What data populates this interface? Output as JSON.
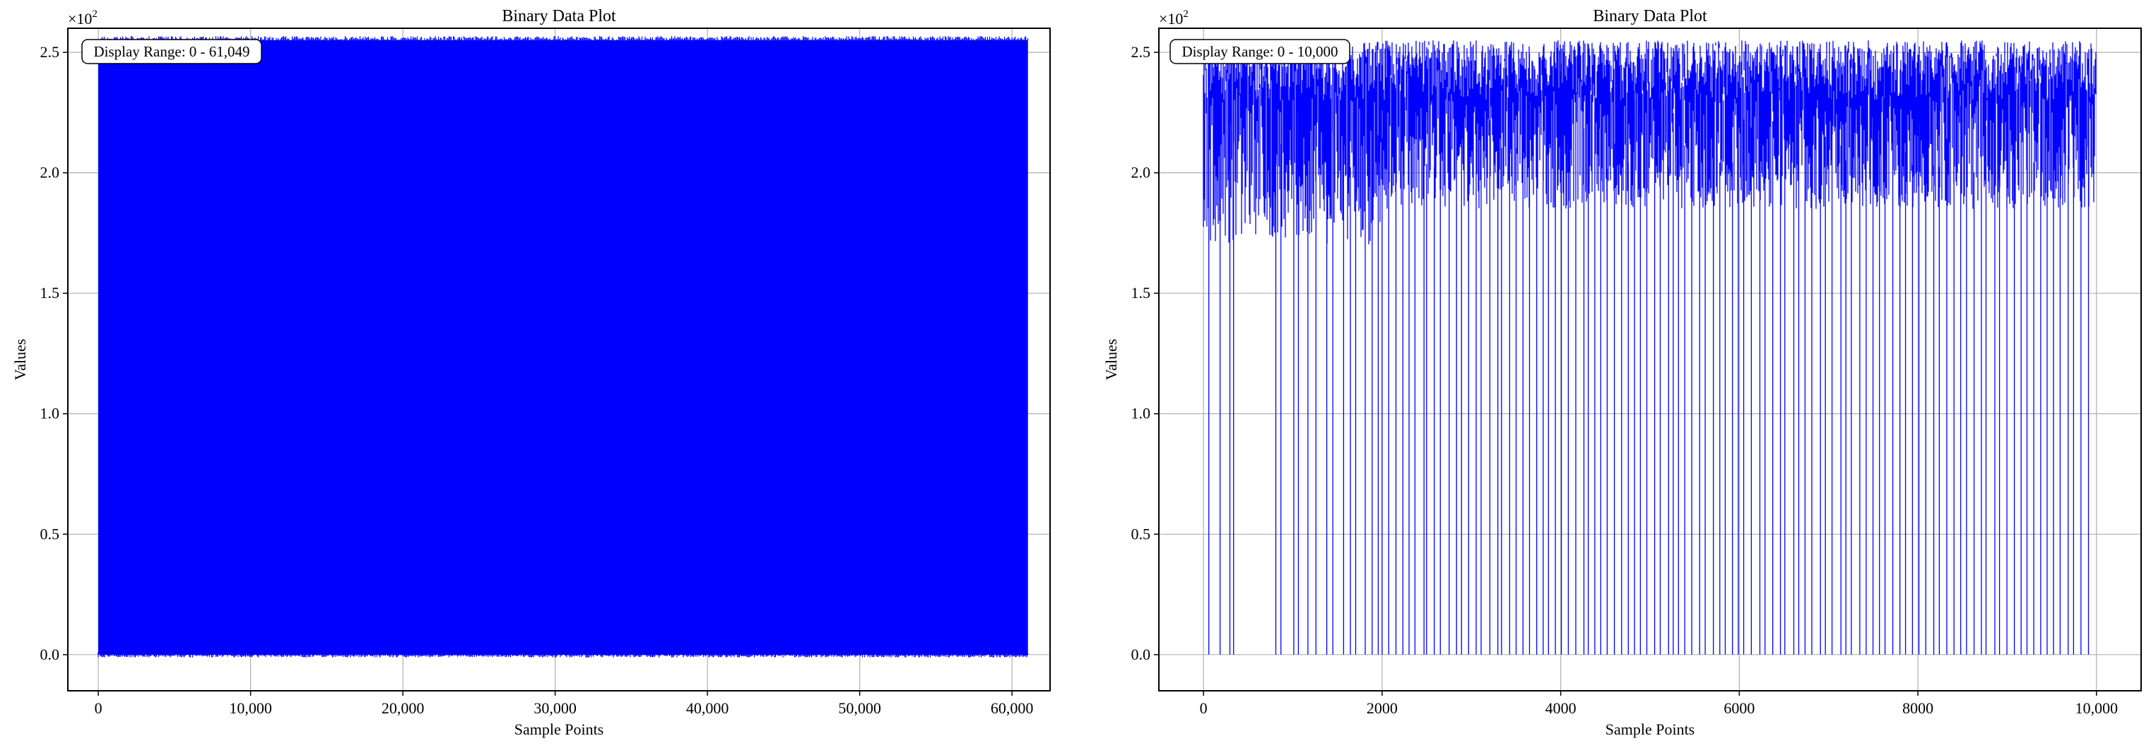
{
  "chart_data": [
    {
      "type": "line",
      "title": "Binary Data Plot",
      "xlabel": "Sample Points",
      "ylabel": "Values",
      "y_multiplier": "×10",
      "y_exponent": "2",
      "annotation": "Display Range: 0 - 61,049",
      "xlim": [
        -2000,
        62500
      ],
      "ylim": [
        -0.15,
        2.6
      ],
      "x_ticks": [
        0,
        10000,
        20000,
        30000,
        40000,
        50000,
        60000
      ],
      "x_tick_labels": [
        "0",
        "10,000",
        "20,000",
        "30,000",
        "40,000",
        "50,000",
        "60,000"
      ],
      "y_ticks": [
        0.0,
        0.5,
        1.0,
        1.5,
        2.0,
        2.5
      ],
      "y_tick_labels": [
        "0.0",
        "0.5",
        "1.0",
        "1.5",
        "2.0",
        "2.5"
      ],
      "grid": true,
      "line_color": "#0000ff",
      "series": [
        {
          "x": [
            0,
            61049
          ],
          "envelope_low": [
            0.0,
            0.0
          ],
          "envelope_high": [
            2.55,
            2.55
          ]
        }
      ]
    },
    {
      "type": "line",
      "title": "Binary Data Plot",
      "xlabel": "Sample Points",
      "ylabel": "Values",
      "y_multiplier": "×10",
      "y_exponent": "2",
      "annotation": "Display Range: 0 - 10,000",
      "xlim": [
        -500,
        10500
      ],
      "ylim": [
        -0.15,
        2.6
      ],
      "x_ticks": [
        0,
        2000,
        4000,
        6000,
        8000,
        10000
      ],
      "x_tick_labels": [
        "0",
        "2000",
        "4000",
        "6000",
        "8000",
        "10,000"
      ],
      "y_ticks": [
        0.0,
        0.5,
        1.0,
        1.5,
        2.0,
        2.5
      ],
      "y_tick_labels": [
        "0.0",
        "0.5",
        "1.0",
        "1.5",
        "2.0",
        "2.5"
      ],
      "grid": true,
      "line_color": "#0000ff",
      "series": [
        {
          "x": [
            0,
            10000
          ],
          "segments": [
            {
              "x_range": [
                0,
                2000
              ],
              "typical_min": 1.7,
              "typical_max": 2.55
            },
            {
              "x_range": [
                2000,
                10000
              ],
              "typical_min": 1.85,
              "typical_max": 2.55
            }
          ],
          "drops_to_zero_x": [
            50,
            180,
            300,
            330,
            800,
            870,
            1000,
            1060,
            1180,
            1250,
            1380,
            1450,
            1560,
            1650,
            1700,
            1800,
            1900,
            1960,
            2010,
            2080,
            2150,
            2240,
            2300,
            2360,
            2460,
            2500,
            2580,
            2640,
            2760,
            2830,
            2900,
            2960,
            3050,
            3120,
            3210,
            3290,
            3340,
            3420,
            3500,
            3580,
            3650,
            3720,
            3800,
            3860,
            3950,
            4000,
            4080,
            4170,
            4250,
            4300,
            4380,
            4460,
            4520,
            4600,
            4680,
            4750,
            4820,
            4900,
            4960,
            5050,
            5120,
            5200,
            5260,
            5330,
            5400,
            5470,
            5560,
            5620,
            5700,
            5780,
            5850,
            5920,
            5990,
            6060,
            6140,
            6220,
            6290,
            6370,
            6450,
            6520,
            6600,
            6660,
            6740,
            6820,
            6900,
            6970,
            7040,
            7130,
            7200,
            7260,
            7340,
            7420,
            7490,
            7570,
            7640,
            7720,
            7800,
            7860,
            7940,
            8020,
            8100,
            8170,
            8250,
            8320,
            8400,
            8470,
            8550,
            8620,
            8700,
            8770,
            8850,
            8920,
            9000,
            9070,
            9150,
            9230,
            9300,
            9370,
            9450,
            9520,
            9600,
            9680,
            9750,
            9830,
            9900
          ]
        }
      ]
    }
  ]
}
